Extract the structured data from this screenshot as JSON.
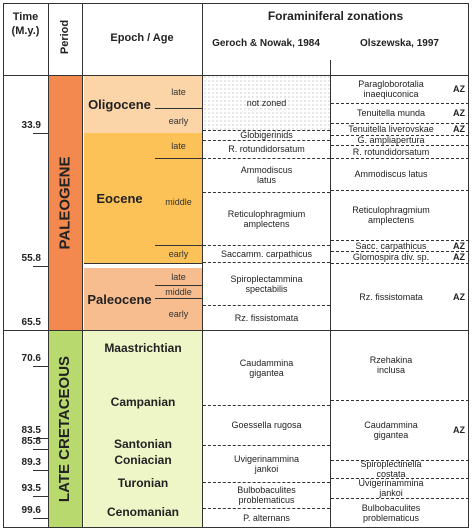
{
  "header": {
    "time": [
      "Time",
      "(M.y.)"
    ],
    "period": "Period",
    "epoch": "Epoch / Age",
    "zonations": "Foraminiferal zonations",
    "geroch": "Geroch & Nowak, 1984",
    "olszewska": "Olszewska, 1997"
  },
  "time_ticks": [
    "33.9",
    "55.8",
    "65.5",
    "70.6",
    "83.5",
    "85.8",
    "89.3",
    "93.5",
    "99.6"
  ],
  "periods": [
    "PALEOGENE",
    "LATE CRETACEOUS"
  ],
  "epochs": [
    {
      "name": "Oligocene",
      "ages": [
        "late",
        "early"
      ]
    },
    {
      "name": "Eocene",
      "ages": [
        "late",
        "middle",
        "early"
      ]
    },
    {
      "name": "Paleocene",
      "ages": [
        "late",
        "middle",
        "early"
      ]
    }
  ],
  "stages": [
    "Maastrichtian",
    "Campanian",
    "Santonian",
    "Coniacian",
    "Turonian",
    "Cenomanian"
  ],
  "geroch_zones": [
    {
      "lines": [
        "not zoned"
      ]
    },
    {
      "lines": [
        "Globigerinids"
      ]
    },
    {
      "lines": [
        "R. rotundidorsatum"
      ]
    },
    {
      "lines": [
        "Ammodiscus",
        "latus"
      ]
    },
    {
      "lines": [
        "Reticulophragmium",
        "amplectens"
      ]
    },
    {
      "lines": [
        "Saccamm. carpathicus"
      ]
    },
    {
      "lines": [
        "Spiroplectammina",
        "spectabilis"
      ]
    },
    {
      "lines": [
        "Rz. fissistomata"
      ]
    },
    {
      "lines": [
        "Caudammina",
        "gigantea"
      ]
    },
    {
      "lines": [
        "Goessella rugosa"
      ]
    },
    {
      "lines": [
        "Uvigerinammina",
        "jankoi"
      ]
    },
    {
      "lines": [
        "Bulbobaculites",
        "problematicus"
      ]
    },
    {
      "lines": [
        "P. alternans"
      ]
    }
  ],
  "olszewska_zones": [
    {
      "lines": [
        "Paragloborotalia",
        "inaeqiuconica"
      ],
      "tag": "AZ"
    },
    {
      "lines": [
        "Tenuitella munda"
      ],
      "tag": "AZ"
    },
    {
      "lines": [
        "Tenuitella liverovskae"
      ],
      "tag": "AZ"
    },
    {
      "lines": [
        "G. ampliapertura"
      ]
    },
    {
      "lines": [
        "R. rotundidorsatum"
      ]
    },
    {
      "lines": [
        "Ammodiscus latus"
      ]
    },
    {
      "lines": [
        "Reticulophragmium",
        "amplectens"
      ]
    },
    {
      "lines": [
        "Sacc. carpathicus"
      ],
      "tag": "AZ"
    },
    {
      "lines": [
        "Glomospira div. sp."
      ],
      "tag": "AZ"
    },
    {
      "lines": [
        "Rz. fissistomata"
      ],
      "tag": "AZ"
    },
    {
      "lines": [
        "Rzehakina",
        "inclusa"
      ]
    },
    {
      "lines": [
        "Caudammina",
        "gigantea"
      ],
      "tag": "AZ"
    },
    {
      "lines": [
        "Spiroplectinella",
        "costata"
      ]
    },
    {
      "lines": [
        "Uvigerinammina",
        "jankoi"
      ]
    },
    {
      "lines": [
        "Bulbobaculites",
        "problematicus"
      ]
    }
  ]
}
